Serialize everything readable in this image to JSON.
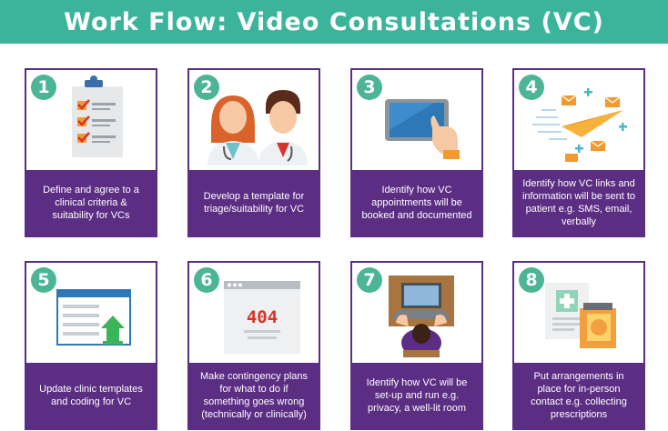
{
  "title": "Work Flow: Video Consultations (VC)",
  "colors": {
    "banner": "#3cb49c",
    "card_border": "#5b2d83",
    "caption_bg": "#5b2d83",
    "number_badge": "#4cb595"
  },
  "steps": [
    {
      "number": "1",
      "icon": "checklist-clipboard-icon",
      "text": "Define and agree to a clinical criteria & suitability for VCs"
    },
    {
      "number": "2",
      "icon": "clinicians-icon",
      "text": "Develop a template for triage/suitability for VC"
    },
    {
      "number": "3",
      "icon": "tablet-touch-icon",
      "text": "Identify how VC appointments will be booked and documented"
    },
    {
      "number": "4",
      "icon": "sending-mail-icon",
      "text": "Identify how VC links and information will be sent to patient e.g. SMS, email, verbally"
    },
    {
      "number": "5",
      "icon": "template-upload-icon",
      "text": "Update clinic templates and coding for VC"
    },
    {
      "number": "6",
      "icon": "error-404-icon",
      "text": "Make contingency plans for what to do if something goes wrong (technically or clinically)"
    },
    {
      "number": "7",
      "icon": "person-at-desk-icon",
      "text": "Identify how VC will be set-up and run e.g. privacy, a well-lit room"
    },
    {
      "number": "8",
      "icon": "medical-documents-icon",
      "text": "Put arrangements in place for in-person contact e.g. collecting prescriptions"
    }
  ]
}
